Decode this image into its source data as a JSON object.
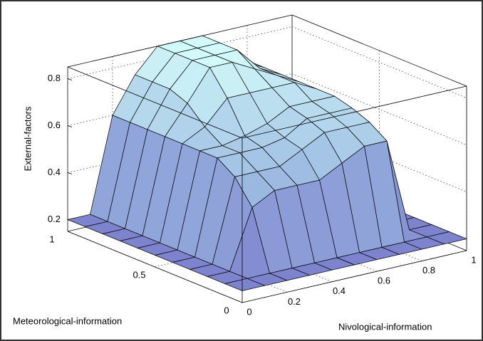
{
  "chart_data": {
    "type": "surface",
    "xlabel": "Nivological-information",
    "ylabel": "Meteorological-information",
    "zlabel": "External-factors",
    "x": [
      0,
      0.1,
      0.2,
      0.3,
      0.4,
      0.5,
      0.6,
      0.7,
      0.8,
      0.9,
      1
    ],
    "y": [
      0,
      0.1,
      0.2,
      0.3,
      0.4,
      0.5,
      0.6,
      0.7,
      0.8,
      0.9,
      1
    ],
    "z": [
      [
        0.2,
        0.2,
        0.2,
        0.2,
        0.2,
        0.2,
        0.2,
        0.2,
        0.2,
        0.2,
        0.2
      ],
      [
        0.2,
        0.2,
        0.2,
        0.2,
        0.2,
        0.2,
        0.2,
        0.2,
        0.2,
        0.2,
        0.2
      ],
      [
        0.2,
        0.2,
        0.45,
        0.5,
        0.5,
        0.5,
        0.55,
        0.6,
        0.6,
        0.2,
        0.2
      ],
      [
        0.2,
        0.2,
        0.55,
        0.55,
        0.55,
        0.6,
        0.65,
        0.65,
        0.65,
        0.2,
        0.2
      ],
      [
        0.2,
        0.2,
        0.6,
        0.6,
        0.6,
        0.62,
        0.68,
        0.68,
        0.68,
        0.2,
        0.2
      ],
      [
        0.2,
        0.2,
        0.6,
        0.6,
        0.62,
        0.65,
        0.7,
        0.7,
        0.7,
        0.2,
        0.2
      ],
      [
        0.2,
        0.2,
        0.6,
        0.65,
        0.75,
        0.75,
        0.75,
        0.75,
        0.7,
        0.2,
        0.2
      ],
      [
        0.2,
        0.2,
        0.6,
        0.72,
        0.85,
        0.85,
        0.8,
        0.75,
        0.7,
        0.2,
        0.2
      ],
      [
        0.2,
        0.2,
        0.6,
        0.75,
        0.85,
        0.85,
        0.85,
        0.75,
        0.7,
        0.2,
        0.2
      ],
      [
        0.2,
        0.2,
        0.6,
        0.75,
        0.85,
        0.85,
        0.85,
        0.75,
        0.7,
        0.2,
        0.2
      ],
      [
        0.2,
        0.2,
        0.6,
        0.75,
        0.85,
        0.85,
        0.85,
        0.75,
        0.7,
        0.2,
        0.2
      ]
    ],
    "xlim": [
      0,
      1
    ],
    "ylim": [
      0,
      1
    ],
    "zlim": [
      0.15,
      0.85
    ],
    "xticks": [
      0,
      0.2,
      0.4,
      0.6,
      0.8,
      1
    ],
    "yticks": [
      0,
      0.5,
      1
    ],
    "zticks": [
      0.2,
      0.4,
      0.6,
      0.8
    ],
    "grid": true,
    "colormap": [
      "#7a7acb",
      "#99b6e0",
      "#d2fafa"
    ]
  }
}
